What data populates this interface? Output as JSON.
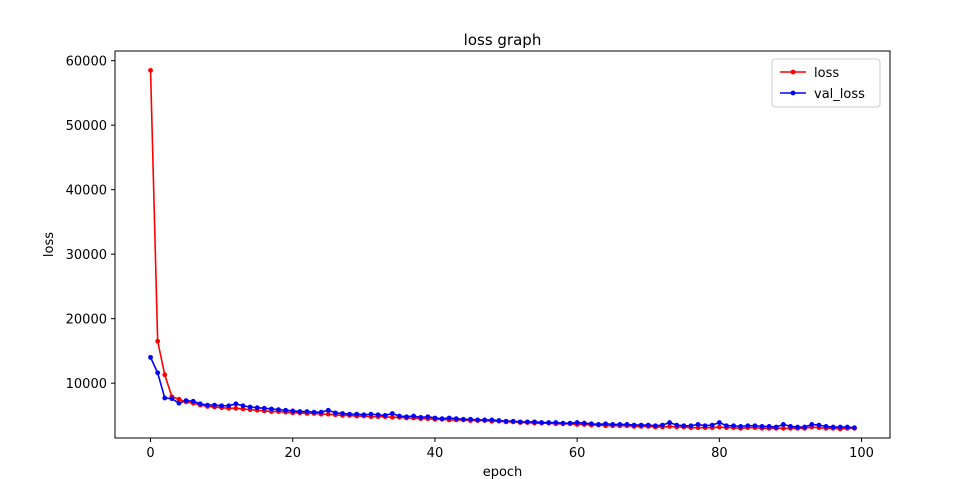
{
  "chart_data": {
    "type": "line",
    "title": "loss graph",
    "xlabel": "epoch",
    "ylabel": "loss",
    "xlim": [
      -5,
      104
    ],
    "ylim": [
      1500,
      61500
    ],
    "xticks": [
      0,
      20,
      40,
      60,
      80,
      100
    ],
    "yticks": [
      10000,
      20000,
      30000,
      40000,
      50000,
      60000
    ],
    "grid": false,
    "legend_position": "top-right",
    "series": [
      {
        "name": "loss",
        "color": "#ff0000",
        "marker": "dot",
        "x": [
          0,
          1,
          2,
          3,
          4,
          5,
          6,
          7,
          8,
          9,
          10,
          11,
          12,
          13,
          14,
          15,
          16,
          17,
          18,
          19,
          20,
          21,
          22,
          23,
          24,
          25,
          26,
          27,
          28,
          29,
          30,
          31,
          32,
          33,
          34,
          35,
          36,
          37,
          38,
          39,
          40,
          41,
          42,
          43,
          44,
          45,
          46,
          47,
          48,
          49,
          50,
          51,
          52,
          53,
          54,
          55,
          56,
          57,
          58,
          59,
          60,
          61,
          62,
          63,
          64,
          65,
          66,
          67,
          68,
          69,
          70,
          71,
          72,
          73,
          74,
          75,
          76,
          77,
          78,
          79,
          80,
          81,
          82,
          83,
          84,
          85,
          86,
          87,
          88,
          89,
          90,
          91,
          92,
          93,
          94,
          95,
          96,
          97,
          98,
          99
        ],
        "values": [
          58500,
          16500,
          11300,
          7900,
          7500,
          7100,
          6900,
          6600,
          6400,
          6300,
          6200,
          6100,
          6100,
          6000,
          5900,
          5800,
          5700,
          5600,
          5600,
          5500,
          5400,
          5400,
          5300,
          5300,
          5200,
          5200,
          5100,
          5000,
          5000,
          4900,
          4900,
          4800,
          4800,
          4800,
          4700,
          4700,
          4600,
          4600,
          4500,
          4500,
          4400,
          4400,
          4300,
          4300,
          4300,
          4200,
          4200,
          4200,
          4100,
          4100,
          4000,
          4000,
          3900,
          3900,
          3800,
          3800,
          3800,
          3700,
          3700,
          3700,
          3600,
          3600,
          3500,
          3500,
          3400,
          3400,
          3400,
          3400,
          3300,
          3300,
          3300,
          3200,
          3200,
          3300,
          3200,
          3200,
          3100,
          3100,
          3100,
          3100,
          3200,
          3100,
          3100,
          3000,
          3100,
          3100,
          3000,
          3000,
          3000,
          3000,
          3000,
          3000,
          3000,
          3200,
          3100,
          3000,
          3000,
          2900,
          3000,
          3000
        ]
      },
      {
        "name": "val_loss",
        "color": "#0000ff",
        "marker": "dot",
        "x": [
          0,
          1,
          2,
          3,
          4,
          5,
          6,
          7,
          8,
          9,
          10,
          11,
          12,
          13,
          14,
          15,
          16,
          17,
          18,
          19,
          20,
          21,
          22,
          23,
          24,
          25,
          26,
          27,
          28,
          29,
          30,
          31,
          32,
          33,
          34,
          35,
          36,
          37,
          38,
          39,
          40,
          41,
          42,
          43,
          44,
          45,
          46,
          47,
          48,
          49,
          50,
          51,
          52,
          53,
          54,
          55,
          56,
          57,
          58,
          59,
          60,
          61,
          62,
          63,
          64,
          65,
          66,
          67,
          68,
          69,
          70,
          71,
          72,
          73,
          74,
          75,
          76,
          77,
          78,
          79,
          80,
          81,
          82,
          83,
          84,
          85,
          86,
          87,
          88,
          89,
          90,
          91,
          92,
          93,
          94,
          95,
          96,
          97,
          98,
          99
        ],
        "values": [
          14000,
          11600,
          7700,
          7600,
          6900,
          7300,
          7200,
          6800,
          6600,
          6600,
          6500,
          6500,
          6800,
          6500,
          6300,
          6200,
          6100,
          6000,
          5900,
          5800,
          5700,
          5600,
          5600,
          5500,
          5500,
          5800,
          5400,
          5300,
          5200,
          5200,
          5100,
          5200,
          5100,
          5000,
          5300,
          4900,
          4800,
          4900,
          4700,
          4800,
          4600,
          4500,
          4600,
          4500,
          4400,
          4400,
          4300,
          4300,
          4300,
          4200,
          4100,
          4100,
          4000,
          4000,
          4000,
          3900,
          3900,
          3900,
          3800,
          3800,
          3900,
          3800,
          3700,
          3600,
          3700,
          3600,
          3600,
          3600,
          3500,
          3500,
          3500,
          3400,
          3500,
          3900,
          3500,
          3400,
          3400,
          3600,
          3400,
          3500,
          3900,
          3400,
          3400,
          3300,
          3400,
          3400,
          3300,
          3300,
          3200,
          3600,
          3300,
          3200,
          3200,
          3600,
          3500,
          3300,
          3200,
          3200,
          3200,
          3100
        ]
      }
    ]
  }
}
